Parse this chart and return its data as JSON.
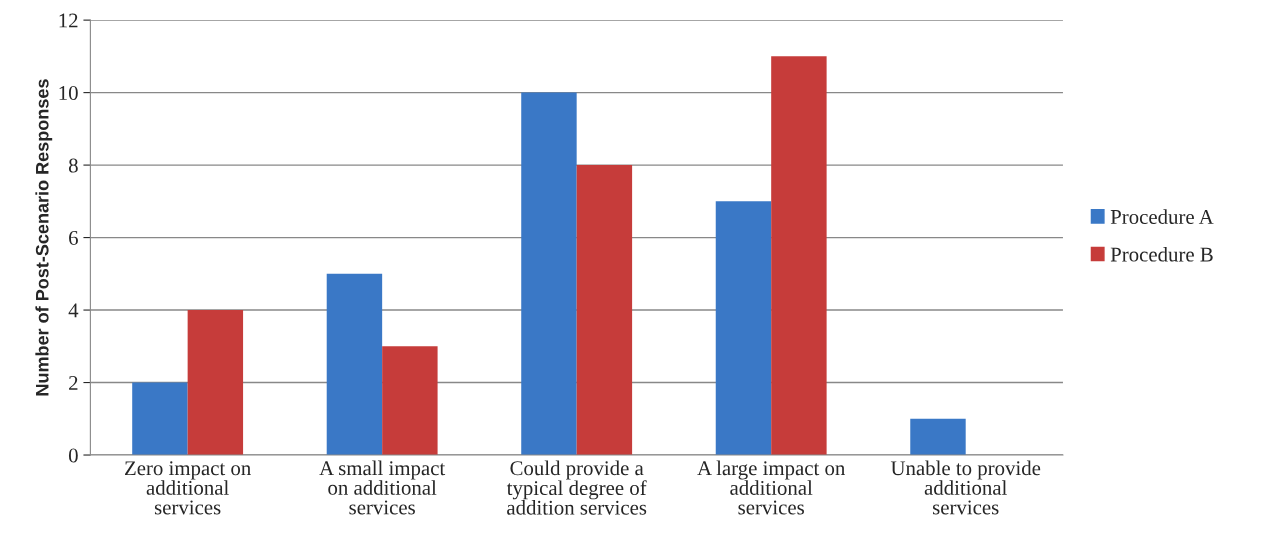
{
  "chart_data": {
    "type": "bar",
    "ylabel": "Number of Post-Scenario Responses",
    "categories": [
      "Zero impact on\nadditional\nservices",
      "A small impact\non additional\nservices",
      "Could provide a\ntypical degree of\naddition services",
      "A large impact on\nadditional\nservices",
      "Unable to provide\nadditional\nservices"
    ],
    "series": [
      {
        "name": "Procedure A",
        "color": "#3a78c6",
        "values": [
          2,
          5,
          10,
          7,
          1
        ]
      },
      {
        "name": "Procedure B",
        "color": "#c63c3a",
        "values": [
          4,
          3,
          8,
          11,
          0
        ]
      }
    ],
    "ylim": [
      0,
      12
    ],
    "yticks": [
      0,
      2,
      4,
      6,
      8,
      10,
      12
    ],
    "grid": "y",
    "legend": "right"
  }
}
